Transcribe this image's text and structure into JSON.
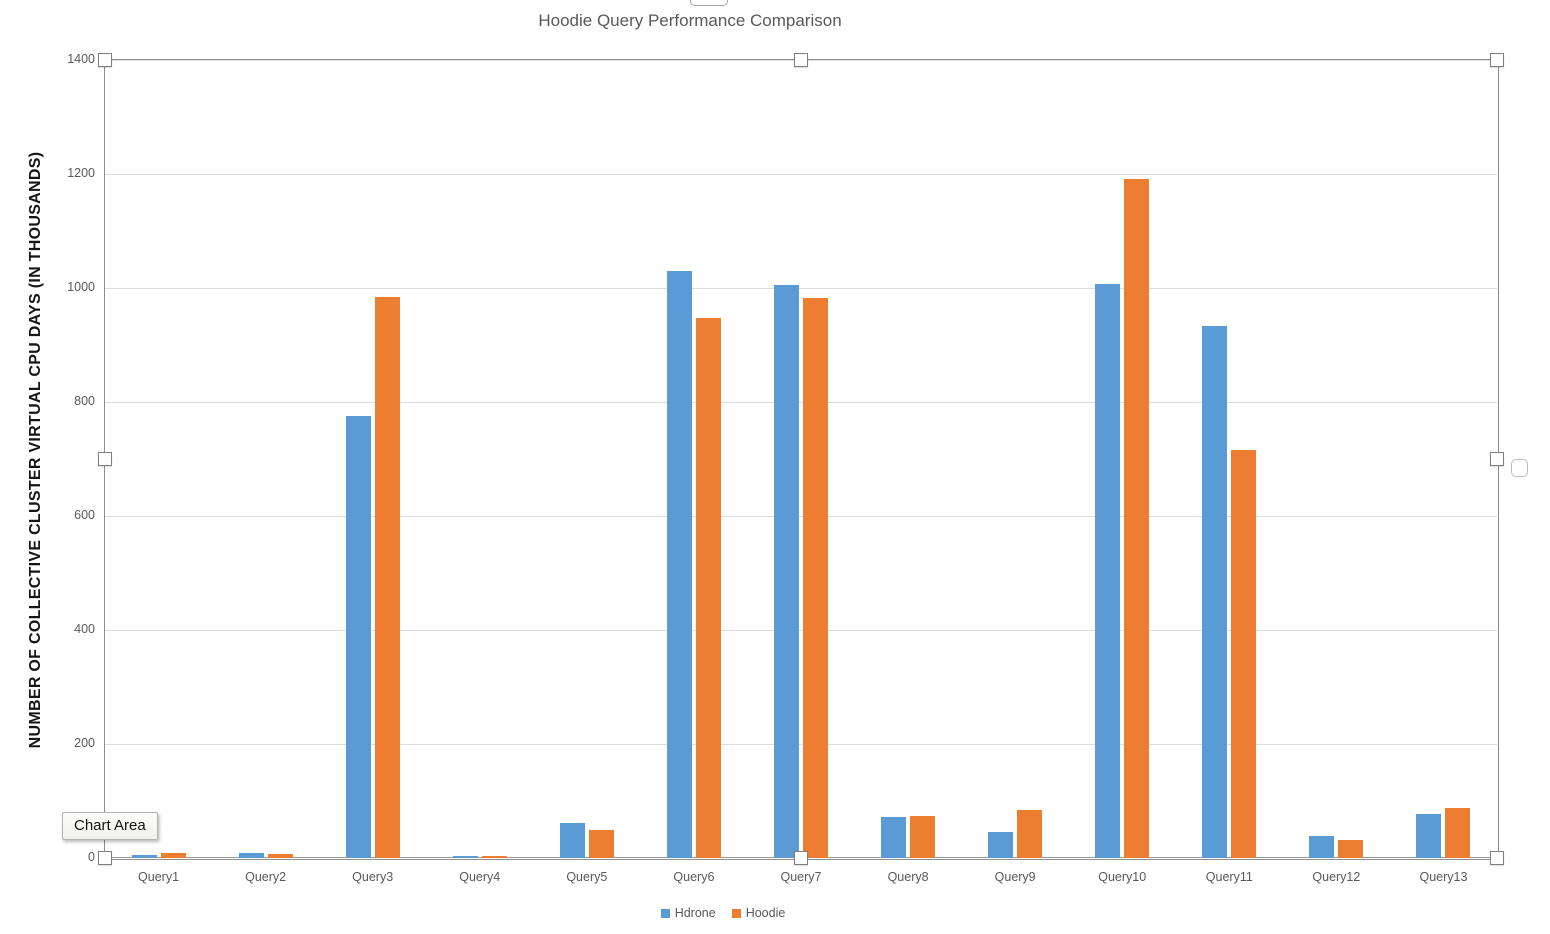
{
  "chart_data": {
    "type": "bar",
    "title": "Hoodie Query Performance Comparison",
    "xlabel": "",
    "ylabel": "NUMBER OF COLLECTIVE CLUSTER VIRTUAL CPU DAYS (IN THOUSANDS)",
    "categories": [
      "Query1",
      "Query2",
      "Query3",
      "Query4",
      "Query5",
      "Query6",
      "Query7",
      "Query8",
      "Query9",
      "Query10",
      "Query11",
      "Query12",
      "Query13"
    ],
    "series": [
      {
        "name": "Hdrone",
        "color": "#5b9bd5",
        "values": [
          5,
          8,
          775,
          4,
          62,
          1030,
          1005,
          72,
          46,
          1007,
          933,
          39,
          78
        ]
      },
      {
        "name": "Hoodie",
        "color": "#ed7d31",
        "values": [
          8,
          7,
          985,
          3,
          50,
          948,
          983,
          74,
          84,
          1192,
          716,
          31,
          87
        ]
      }
    ],
    "ylim": [
      0,
      1400
    ],
    "yticks": [
      0,
      200,
      400,
      600,
      800,
      1000,
      1200,
      1400
    ],
    "grid": true,
    "legend_position": "bottom"
  },
  "tooltip": {
    "label": "Chart Area"
  },
  "colors": {
    "hdrone_bar": "#5b9bd5",
    "hoodie_bar": "#ed7d31",
    "title_text": "#595959",
    "axis_text": "#595959",
    "gridline": "#dcdcdc",
    "axis_line": "#9a9a9a",
    "selection_border": "#8f8f8f"
  }
}
